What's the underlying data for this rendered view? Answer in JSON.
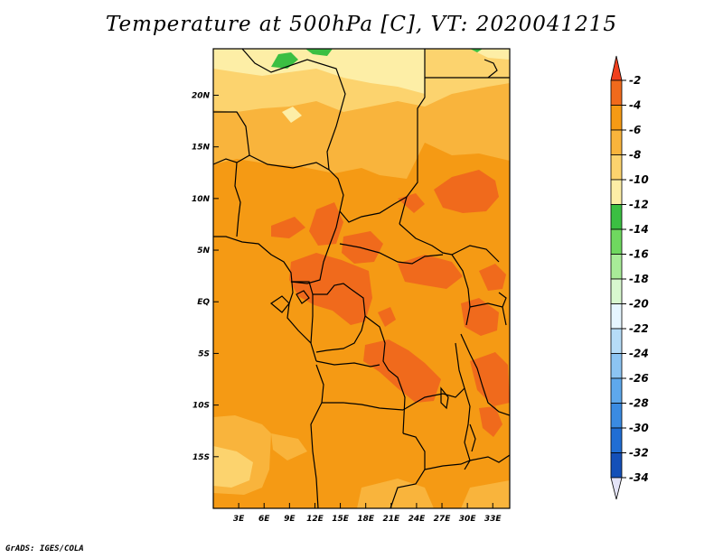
{
  "title": "Temperature at 500hPa [C], VT: 2020041215",
  "footer": "GrADS: IGES/COLA",
  "map": {
    "lon_range": [
      0,
      35
    ],
    "lat_range": [
      -20,
      24.5
    ],
    "lat_ticks": [
      {
        "value": 20,
        "label": "20N"
      },
      {
        "value": 15,
        "label": "15N"
      },
      {
        "value": 10,
        "label": "10N"
      },
      {
        "value": 5,
        "label": "5N"
      },
      {
        "value": 0,
        "label": "EQ"
      },
      {
        "value": -5,
        "label": "5S"
      },
      {
        "value": -10,
        "label": "10S"
      },
      {
        "value": -15,
        "label": "15S"
      }
    ],
    "lon_ticks": [
      {
        "value": 3,
        "label": "3E"
      },
      {
        "value": 6,
        "label": "6E"
      },
      {
        "value": 9,
        "label": "9E"
      },
      {
        "value": 12,
        "label": "12E"
      },
      {
        "value": 15,
        "label": "15E"
      },
      {
        "value": 18,
        "label": "18E"
      },
      {
        "value": 21,
        "label": "21E"
      },
      {
        "value": 24,
        "label": "24E"
      },
      {
        "value": 27,
        "label": "27E"
      },
      {
        "value": 30,
        "label": "30E"
      },
      {
        "value": 33,
        "label": "33E"
      }
    ]
  },
  "colorbar": {
    "levels": [
      {
        "label": "-2",
        "color": "#f06a1c"
      },
      {
        "label": "-4",
        "color": "#f59a14"
      },
      {
        "label": "-6",
        "color": "#f9b43c"
      },
      {
        "label": "-8",
        "color": "#fcd36e"
      },
      {
        "label": "-10",
        "color": "#fdeea6"
      },
      {
        "label": "-12",
        "color": "#3bbf42"
      },
      {
        "label": "-14",
        "color": "#6fd85f"
      },
      {
        "label": "-16",
        "color": "#a8ec98"
      },
      {
        "label": "-18",
        "color": "#d8f8cf"
      },
      {
        "label": "-20",
        "color": "#e6f6ff"
      },
      {
        "label": "-22",
        "color": "#b6dcf7"
      },
      {
        "label": "-24",
        "color": "#8cc4f2"
      },
      {
        "label": "-26",
        "color": "#5ea8ec"
      },
      {
        "label": "-28",
        "color": "#3a8be2"
      },
      {
        "label": "-30",
        "color": "#206ed4"
      },
      {
        "label": "-32",
        "color": "#1450b8"
      },
      {
        "label": "-34",
        "color": "#0a1a78"
      }
    ],
    "top_triangle_color": "#f0401e",
    "bottom_triangle_color": "#e4e4f8"
  }
}
